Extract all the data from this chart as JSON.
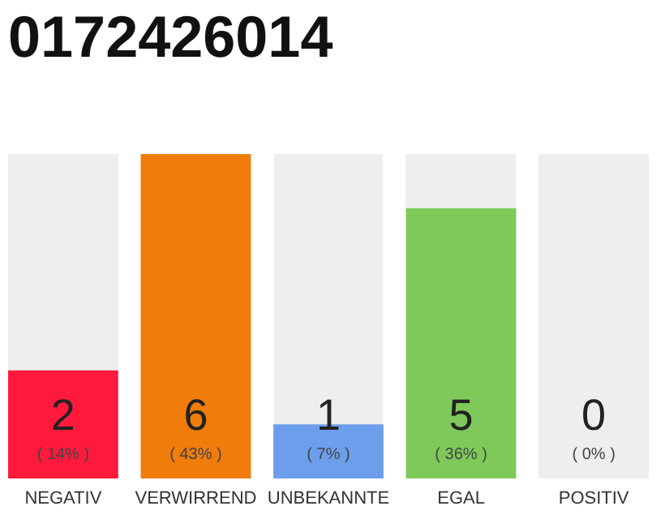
{
  "chart_data": {
    "type": "bar",
    "title": "0172426014",
    "categories": [
      "NEGATIV",
      "VERWIRREND",
      "UNBEKANNTE",
      "EGAL",
      "POSITIV"
    ],
    "values": [
      2,
      6,
      1,
      5,
      0
    ],
    "colors": [
      "#ff1a3c",
      "#f07c0b",
      "#6d9eeb",
      "#7ec95a",
      "#cccccc"
    ],
    "ylim": [
      0,
      6
    ],
    "data_labels": true,
    "tick_labels": "x",
    "annotations": [
      "( 14% )",
      "( 43% )",
      "( 7% )",
      "( 36% )",
      "( 0% )"
    ]
  }
}
